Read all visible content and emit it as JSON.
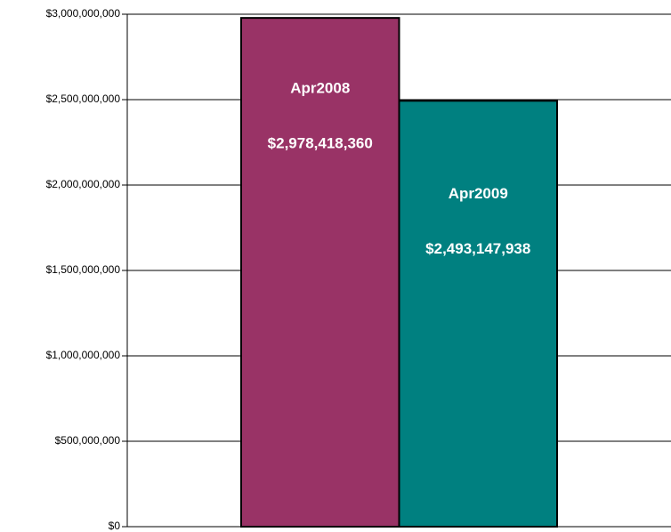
{
  "chart_data": {
    "type": "bar",
    "categories": [
      "Apr2008",
      "Apr2009"
    ],
    "values": [
      2978418360,
      2493147938
    ],
    "value_labels": [
      "$2,978,418,360",
      "$2,493,147,938"
    ],
    "colors": [
      "#993366",
      "#008080"
    ],
    "ylim": [
      0,
      3000000000
    ],
    "yticks": [
      {
        "value": 0,
        "label": "$0"
      },
      {
        "value": 500000000,
        "label": "$500,000,000"
      },
      {
        "value": 1000000000,
        "label": "$1,000,000,000"
      },
      {
        "value": 1500000000,
        "label": "$1,500,000,000"
      },
      {
        "value": 2000000000,
        "label": "$2,000,000,000"
      },
      {
        "value": 2500000000,
        "label": "$2,500,000,000"
      },
      {
        "value": 3000000000,
        "label": "$3,000,000,000"
      }
    ],
    "grid": true
  }
}
